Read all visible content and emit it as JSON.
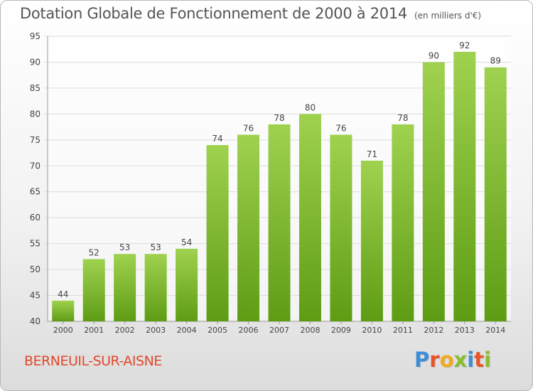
{
  "header": {
    "title": "Dotation Globale de Fonctionnement de 2000 à 2014",
    "unit": "(en milliers d'€)"
  },
  "footer": {
    "commune": "BERNEUIL-SUR-AISNE",
    "logo_letters": [
      "P",
      "r",
      "o",
      "x",
      "i",
      "t",
      "i"
    ],
    "logo_colors": [
      "#3b8ed6",
      "#e8542a",
      "#f2a91d",
      "#86bd2f",
      "#3b8ed6",
      "#e8542a",
      "#86bd2f"
    ]
  },
  "colors": {
    "bar_top": "#9fd24f",
    "bar_bottom": "#5e9c14",
    "grid": "#dcdcdc",
    "axis_text": "#444444"
  },
  "chart_data": {
    "type": "bar",
    "categories": [
      "2000",
      "2001",
      "2002",
      "2003",
      "2004",
      "2005",
      "2006",
      "2007",
      "2008",
      "2009",
      "2010",
      "2011",
      "2012",
      "2013",
      "2014"
    ],
    "values": [
      44,
      52,
      53,
      53,
      54,
      74,
      76,
      78,
      80,
      76,
      71,
      78,
      90,
      92,
      89
    ],
    "ylim": [
      40,
      95
    ],
    "yticks": [
      40,
      45,
      50,
      55,
      60,
      65,
      70,
      75,
      80,
      85,
      90,
      95
    ],
    "grid": true,
    "data_labels": true
  }
}
